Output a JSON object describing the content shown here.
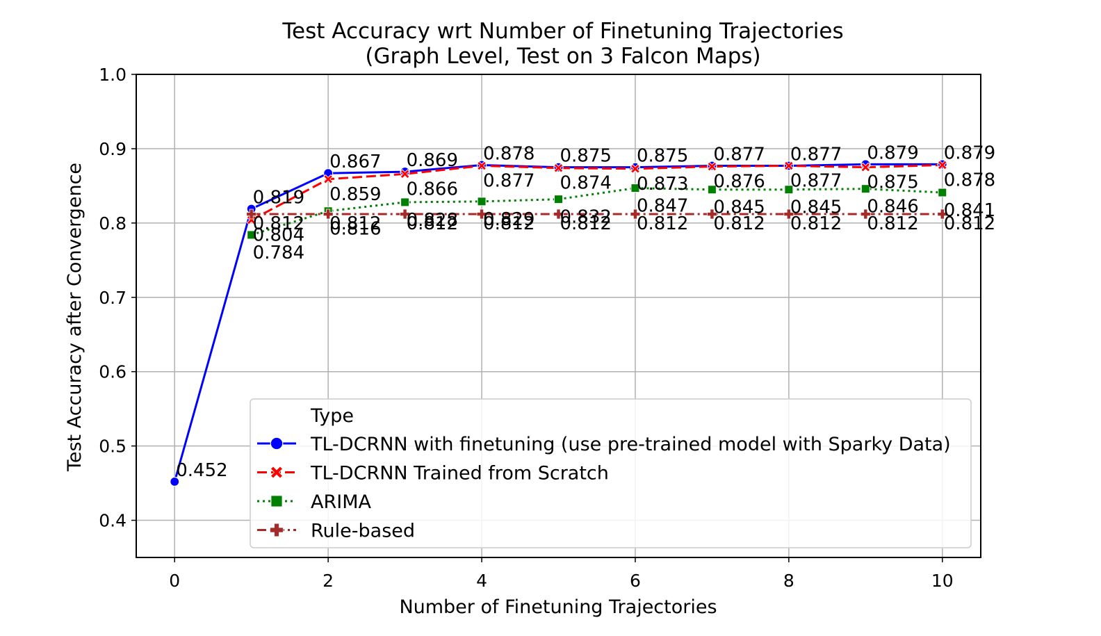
{
  "chart_data": {
    "type": "line",
    "title": "Test Accuracy wrt Number of Finetuning Trajectories",
    "subtitle": "(Graph Level, Test on 3 Falcon Maps)",
    "xlabel": "Number of Finetuning Trajectories",
    "ylabel": "Test Accuracy after Convergence",
    "xlim": [
      -0.5,
      10.5
    ],
    "ylim": [
      0.35,
      1.0
    ],
    "xticks": [
      0,
      2,
      4,
      6,
      8,
      10
    ],
    "yticks": [
      0.4,
      0.5,
      0.6,
      0.7,
      0.8,
      0.9,
      1.0
    ],
    "xtick_labels": [
      "0",
      "2",
      "4",
      "6",
      "8",
      "10"
    ],
    "ytick_labels": [
      "0.4",
      "0.5",
      "0.6",
      "0.7",
      "0.8",
      "0.9",
      "1.0"
    ],
    "grid": true,
    "legend": {
      "title": "Type",
      "position": "lower-right"
    },
    "series": [
      {
        "name": "TL-DCRNN with finetuning (use pre-trained model with Sparky Data)",
        "color": "#0000ff",
        "line_style": "solid",
        "marker": "circle",
        "x": [
          0,
          1,
          2,
          3,
          4,
          5,
          6,
          7,
          8,
          9,
          10
        ],
        "y": [
          0.452,
          0.819,
          0.867,
          0.869,
          0.878,
          0.875,
          0.875,
          0.877,
          0.877,
          0.879,
          0.879
        ],
        "labels": [
          "0.452",
          "0.819",
          "0.867",
          "0.869",
          "0.878",
          "0.875",
          "0.875",
          "0.877",
          "0.877",
          "0.879",
          "0.879"
        ]
      },
      {
        "name": "TL-DCRNN Trained from Scratch",
        "color": "#ff0000",
        "line_style": "dashed",
        "marker": "x",
        "x": [
          1,
          2,
          3,
          4,
          5,
          6,
          7,
          8,
          9,
          10
        ],
        "y": [
          0.804,
          0.859,
          0.866,
          0.877,
          0.874,
          0.873,
          0.876,
          0.877,
          0.875,
          0.878
        ],
        "labels": [
          "0.804",
          "0.859",
          "0.866",
          "0.877",
          "0.874",
          "0.873",
          "0.876",
          "0.877",
          "0.875",
          "0.878"
        ]
      },
      {
        "name": "ARIMA",
        "color": "#008000",
        "line_style": "dotted",
        "marker": "square",
        "x": [
          1,
          2,
          3,
          4,
          5,
          6,
          7,
          8,
          9,
          10
        ],
        "y": [
          0.784,
          0.816,
          0.828,
          0.829,
          0.832,
          0.847,
          0.845,
          0.845,
          0.846,
          0.841
        ],
        "labels": [
          "0.784",
          "0.816",
          "0.828",
          "0.829",
          "0.832",
          "0.847",
          "0.845",
          "0.845",
          "0.846",
          "0.841"
        ]
      },
      {
        "name": "Rule-based",
        "color": "#a52a2a",
        "line_style": "dashdot",
        "marker": "plus",
        "x": [
          1,
          2,
          3,
          4,
          5,
          6,
          7,
          8,
          9,
          10
        ],
        "y": [
          0.812,
          0.812,
          0.812,
          0.812,
          0.812,
          0.812,
          0.812,
          0.812,
          0.812,
          0.812
        ],
        "labels": [
          "0.812",
          "0.812",
          "0.812",
          "0.812",
          "0.812",
          "0.812",
          "0.812",
          "0.812",
          "0.812",
          "0.812"
        ]
      }
    ]
  }
}
